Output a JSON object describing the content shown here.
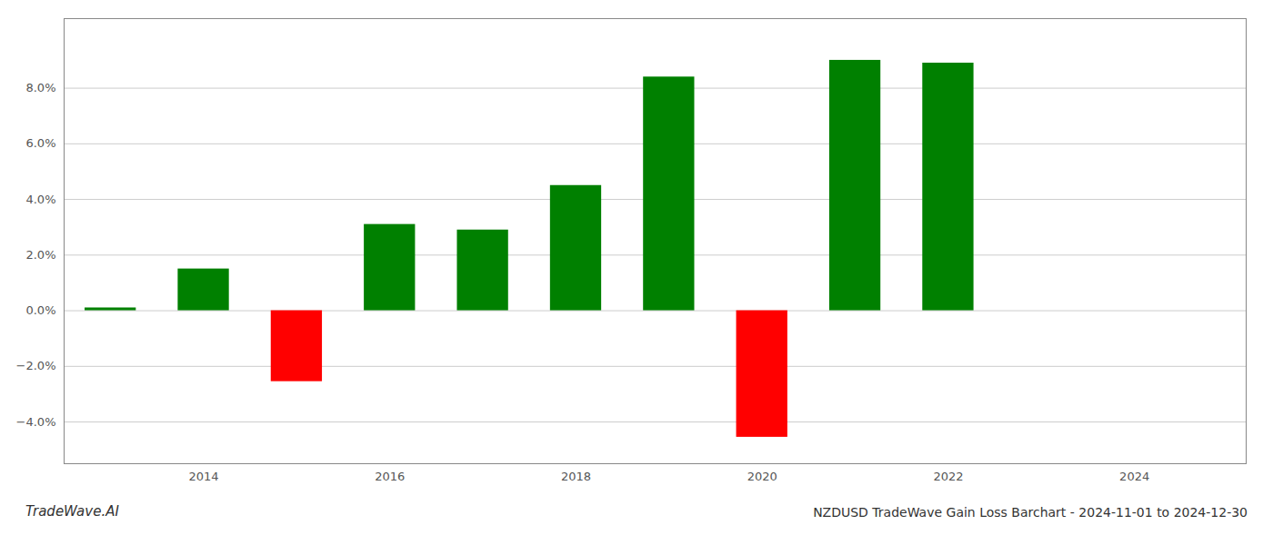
{
  "chart_data": {
    "type": "bar",
    "title": "NZDUSD TradeWave Gain Loss Barchart - 2024-11-01 to 2024-12-30",
    "annotations": [
      "TradeWave.AI"
    ],
    "x": [
      2013,
      2014,
      2015,
      2016,
      2017,
      2018,
      2019,
      2020,
      2021,
      2022,
      2023
    ],
    "values": [
      0.1,
      1.5,
      -2.55,
      3.1,
      2.9,
      4.5,
      8.4,
      -4.55,
      9.0,
      8.9,
      0.0
    ],
    "colors": [
      "#008000",
      "#008000",
      "#ff0000",
      "#008000",
      "#008000",
      "#008000",
      "#008000",
      "#ff0000",
      "#008000",
      "#008000",
      "#008000"
    ],
    "xlim": [
      2012.5,
      2025.2
    ],
    "xticks": [
      2014,
      2016,
      2018,
      2020,
      2022,
      2024
    ],
    "ylim": [
      -5.5,
      10.5
    ],
    "yticks": [
      {
        "value": -4.0,
        "label": "−4.0%"
      },
      {
        "value": -2.0,
        "label": "−2.0%"
      },
      {
        "value": 0.0,
        "label": "0.0%"
      },
      {
        "value": 2.0,
        "label": "2.0%"
      },
      {
        "value": 4.0,
        "label": "4.0%"
      },
      {
        "value": 6.0,
        "label": "6.0%"
      },
      {
        "value": 8.0,
        "label": "8.0%"
      }
    ],
    "grid": true
  }
}
